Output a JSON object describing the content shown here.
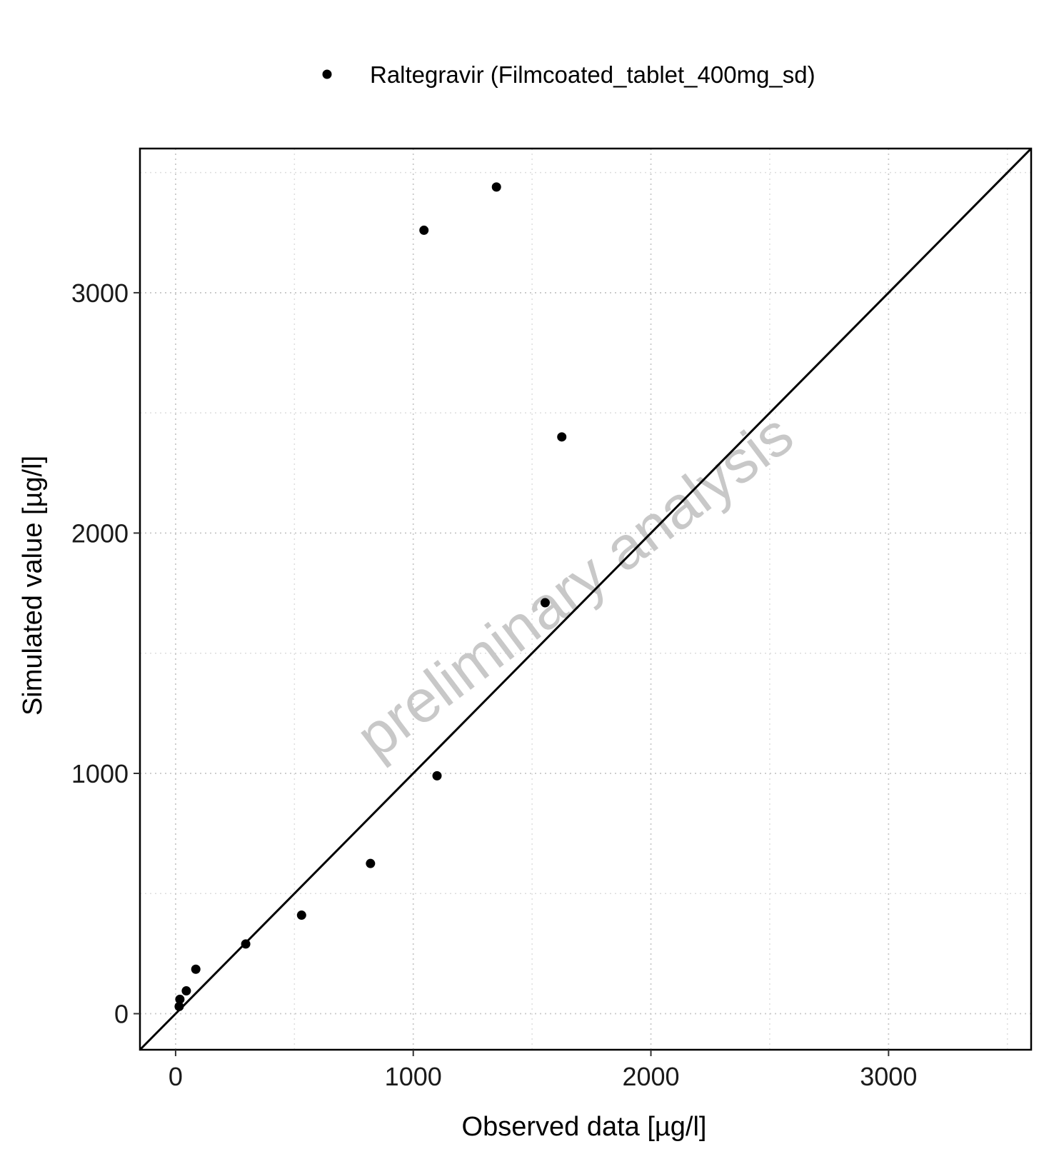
{
  "chart_data": {
    "type": "scatter",
    "xlabel": "Observed data [µg/l]",
    "ylabel": "Simulated value [µg/l]",
    "xlim": [
      -150,
      3600
    ],
    "ylim": [
      -150,
      3600
    ],
    "x_ticks": [
      0,
      1000,
      2000,
      3000
    ],
    "y_ticks": [
      0,
      1000,
      2000,
      3000
    ],
    "minor_grid": [
      500,
      1500,
      2500,
      3500
    ],
    "grid": "dotted",
    "identity_line": true,
    "legend_position": "top",
    "watermark": "preliminary analysis",
    "colors": {
      "points": "#000000",
      "line": "#000000",
      "grid": "#cccccc",
      "watermark": "#c8c8c8"
    },
    "series": [
      {
        "name": "Raltegravir (Filmcoated_tablet_400mg_sd)",
        "points": [
          {
            "x": 15,
            "y": 30
          },
          {
            "x": 18,
            "y": 60
          },
          {
            "x": 45,
            "y": 95
          },
          {
            "x": 85,
            "y": 185
          },
          {
            "x": 295,
            "y": 290
          },
          {
            "x": 530,
            "y": 410
          },
          {
            "x": 820,
            "y": 625
          },
          {
            "x": 1100,
            "y": 990
          },
          {
            "x": 1045,
            "y": 3260
          },
          {
            "x": 1350,
            "y": 3440
          },
          {
            "x": 1555,
            "y": 1710
          },
          {
            "x": 1625,
            "y": 2400
          }
        ]
      }
    ]
  }
}
